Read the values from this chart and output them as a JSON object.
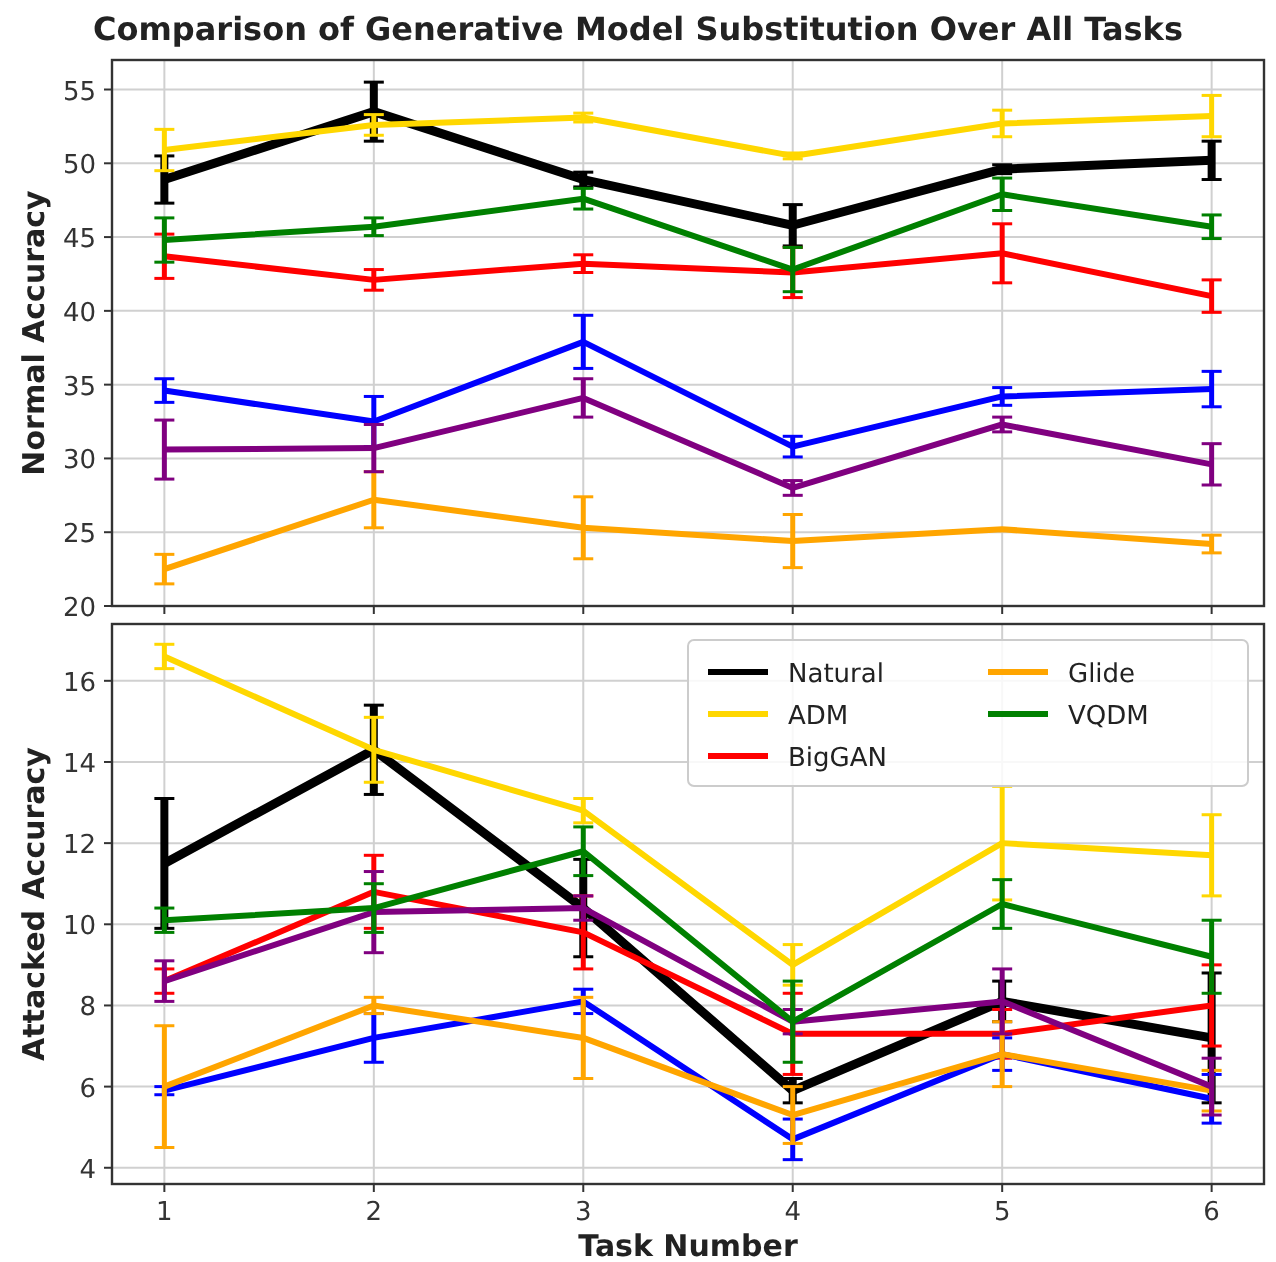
{
  "chart_data": [
    {
      "type": "line",
      "title": "Comparison of Generative Model Substitution Over All Tasks",
      "ylabel": "Normal Accuracy",
      "x": [
        1,
        2,
        3,
        4,
        5,
        6
      ],
      "xlim": [
        0.75,
        6.25
      ],
      "xticks": [
        1,
        2,
        3,
        4,
        5,
        6
      ],
      "ylim": [
        20,
        57
      ],
      "yticks": [
        20,
        25,
        30,
        35,
        40,
        45,
        50,
        55
      ],
      "tick_labels": "y",
      "grid": true,
      "legend": false,
      "marker": "none",
      "line_style": "solid",
      "series": [
        {
          "color": "#000000",
          "values": [
            48.9,
            53.5,
            48.9,
            45.8,
            49.6,
            50.2
          ],
          "errors": [
            1.6,
            2.0,
            0.5,
            1.4,
            0.3,
            1.3
          ]
        },
        {
          "color": "#ffd700",
          "values": [
            50.9,
            52.6,
            53.1,
            50.5,
            52.7,
            53.2
          ],
          "errors": [
            1.4,
            0.7,
            0.3,
            0.2,
            0.9,
            1.4
          ]
        },
        {
          "color": "#ff0000",
          "values": [
            43.7,
            42.1,
            43.2,
            42.6,
            43.9,
            41.0
          ],
          "errors": [
            1.5,
            0.7,
            0.6,
            1.7,
            2.0,
            1.1
          ]
        },
        {
          "color": "#0000ff",
          "values": [
            34.6,
            32.5,
            37.9,
            30.8,
            34.2,
            34.7
          ],
          "errors": [
            0.8,
            1.7,
            1.8,
            0.7,
            0.6,
            1.2
          ]
        },
        {
          "color": "#ffa500",
          "values": [
            22.5,
            27.2,
            25.3,
            24.4,
            25.2,
            24.2
          ],
          "errors": [
            1.0,
            1.9,
            2.1,
            1.8,
            null,
            0.6
          ]
        },
        {
          "color": "#800080",
          "values": [
            30.6,
            30.7,
            34.1,
            28.0,
            32.3,
            29.6
          ],
          "errors": [
            2.0,
            1.6,
            1.3,
            0.5,
            0.5,
            1.4
          ]
        },
        {
          "color": "#008000",
          "values": [
            44.8,
            45.7,
            47.6,
            42.8,
            47.9,
            45.7
          ],
          "errors": [
            1.5,
            0.6,
            0.7,
            1.5,
            1.1,
            0.8
          ]
        }
      ]
    },
    {
      "type": "line",
      "xlabel": "Task Number",
      "ylabel": "Attacked Accuracy",
      "x": [
        1,
        2,
        3,
        4,
        5,
        6
      ],
      "xlim": [
        0.75,
        6.25
      ],
      "xticks": [
        1,
        2,
        3,
        4,
        5,
        6
      ],
      "ylim": [
        3.6,
        17.4
      ],
      "yticks": [
        4,
        6,
        8,
        10,
        12,
        14,
        16
      ],
      "grid": true,
      "legend": "top right",
      "marker": "none",
      "line_style": "solid",
      "series": [
        {
          "name": "Natural",
          "color": "#000000",
          "values": [
            11.5,
            14.3,
            10.4,
            5.9,
            8.1,
            7.2
          ],
          "errors": [
            1.6,
            1.1,
            1.2,
            0.3,
            0.5,
            1.6
          ]
        },
        {
          "name": "ADM",
          "color": "#ffd700",
          "values": [
            16.6,
            14.3,
            12.8,
            9.0,
            12.0,
            11.7
          ],
          "errors": [
            0.3,
            0.8,
            0.3,
            0.5,
            1.4,
            1.0
          ]
        },
        {
          "name": "BigGAN",
          "color": "#ff0000",
          "values": [
            8.6,
            10.8,
            9.8,
            7.3,
            7.3,
            8.0
          ],
          "errors": [
            0.3,
            0.9,
            0.9,
            1.0,
            0.6,
            1.0
          ]
        },
        {
          "color": "#0000ff",
          "values": [
            5.9,
            7.2,
            8.1,
            4.7,
            6.8,
            5.7
          ],
          "errors": [
            0.1,
            0.6,
            0.3,
            0.5,
            0.4,
            0.6
          ]
        },
        {
          "name": "Glide",
          "color": "#ffa500",
          "values": [
            6.0,
            8.0,
            7.2,
            5.3,
            6.8,
            5.9
          ],
          "errors": [
            1.5,
            0.2,
            1.0,
            0.7,
            0.8,
            0.5
          ]
        },
        {
          "color": "#800080",
          "values": [
            8.6,
            10.3,
            10.4,
            7.6,
            8.1,
            6.0
          ],
          "errors": [
            0.5,
            1.0,
            0.3,
            0.3,
            0.8,
            0.7
          ]
        },
        {
          "name": "VQDM",
          "color": "#008000",
          "values": [
            10.1,
            10.4,
            11.8,
            7.6,
            10.5,
            9.2
          ],
          "errors": [
            0.3,
            0.6,
            0.6,
            1.0,
            0.6,
            0.9
          ]
        }
      ]
    }
  ]
}
